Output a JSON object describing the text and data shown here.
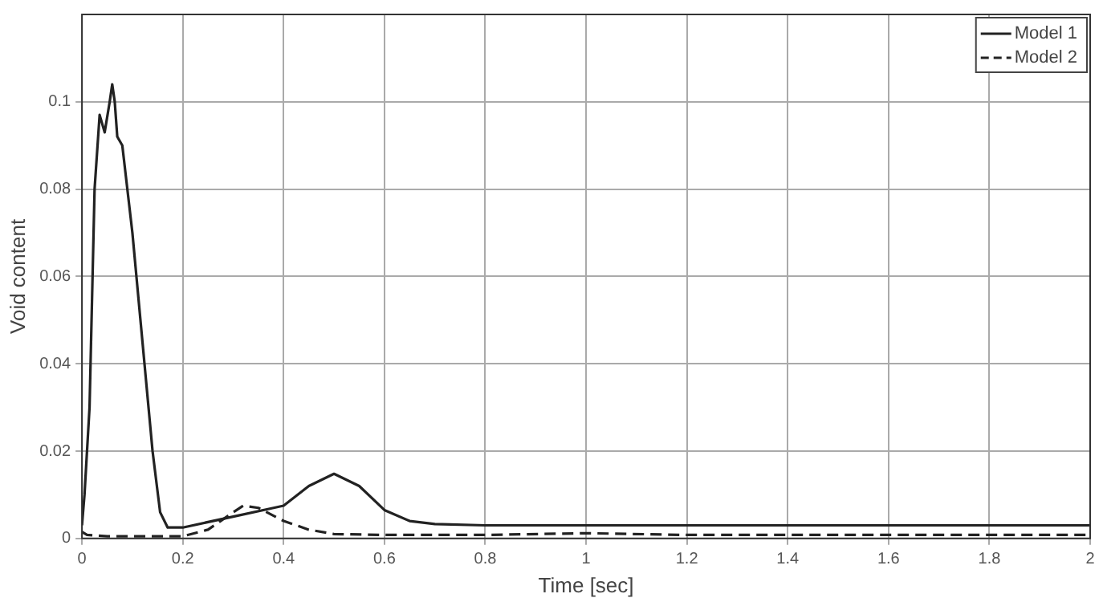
{
  "chart_data": {
    "type": "line",
    "xlabel": "Time [sec]",
    "ylabel": "Void content",
    "xlim": [
      0,
      2
    ],
    "xticks": [
      0,
      0.2,
      0.4,
      0.6,
      0.8,
      1,
      1.2,
      1.4,
      1.6,
      1.8,
      2
    ],
    "ylim": [
      0,
      0.12
    ],
    "yticks": [
      0,
      0.02,
      0.04,
      0.06,
      0.08,
      0.1
    ],
    "grid": true,
    "legend": "top right",
    "marker": "none",
    "series": [
      {
        "name": "Model 1",
        "color": "#222222",
        "line_style": "solid",
        "x": [
          0,
          0.005,
          0.015,
          0.025,
          0.035,
          0.045,
          0.055,
          0.06,
          0.065,
          0.07,
          0.08,
          0.1,
          0.12,
          0.14,
          0.155,
          0.17,
          0.2,
          0.3,
          0.38,
          0.4,
          0.45,
          0.5,
          0.55,
          0.6,
          0.65,
          0.7,
          0.8,
          1,
          2
        ],
        "values": [
          0.003,
          0.01,
          0.03,
          0.08,
          0.097,
          0.093,
          0.1,
          0.104,
          0.1,
          0.092,
          0.09,
          0.07,
          0.045,
          0.02,
          0.006,
          0.0025,
          0.0025,
          0.005,
          0.007,
          0.0075,
          0.012,
          0.0148,
          0.012,
          0.0065,
          0.004,
          0.0033,
          0.003,
          0.003,
          0.003
        ]
      },
      {
        "name": "Model 2",
        "color": "#222222",
        "line_style": "dashed",
        "x": [
          0,
          0.01,
          0.05,
          0.2,
          0.25,
          0.3,
          0.32,
          0.35,
          0.4,
          0.45,
          0.5,
          0.6,
          0.8,
          1,
          1.2,
          2
        ],
        "values": [
          0.0015,
          0.0008,
          0.0005,
          0.0005,
          0.002,
          0.006,
          0.0075,
          0.007,
          0.004,
          0.002,
          0.001,
          0.0008,
          0.0008,
          0.0012,
          0.0008,
          0.0008
        ]
      }
    ]
  }
}
